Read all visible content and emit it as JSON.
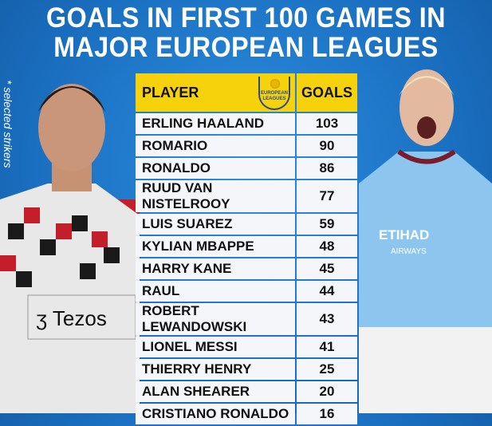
{
  "title": {
    "line1": "GOALS IN FIRST 100 GAMES IN",
    "line2": "MAJOR EUROPEAN LEAGUES"
  },
  "note": "* selected strikers",
  "logo": {
    "text1": "EUROPEAN",
    "text2": "LEAGUES"
  },
  "colors": {
    "background": "#1a6fc0",
    "header": "#f5d20c",
    "row": "#f4f6fa"
  },
  "chart_data": {
    "type": "table",
    "columns": [
      "PLAYER",
      "GOALS"
    ],
    "rows": [
      [
        "ERLING HAALAND",
        "103"
      ],
      [
        "ROMARIO",
        "90"
      ],
      [
        "RONALDO",
        "86"
      ],
      [
        "RUUD VAN NISTELROOY",
        "77"
      ],
      [
        "LUIS SUAREZ",
        "59"
      ],
      [
        "KYLIAN MBAPPE",
        "48"
      ],
      [
        "HARRY KANE",
        "45"
      ],
      [
        "RAUL",
        "44"
      ],
      [
        "ROBERT LEWANDOWSKI",
        "43"
      ],
      [
        "LIONEL MESSI",
        "41"
      ],
      [
        "THIERRY HENRY",
        "25"
      ],
      [
        "ALAN SHEARER",
        "20"
      ],
      [
        "CRISTIANO RONALDO",
        "16"
      ]
    ]
  }
}
